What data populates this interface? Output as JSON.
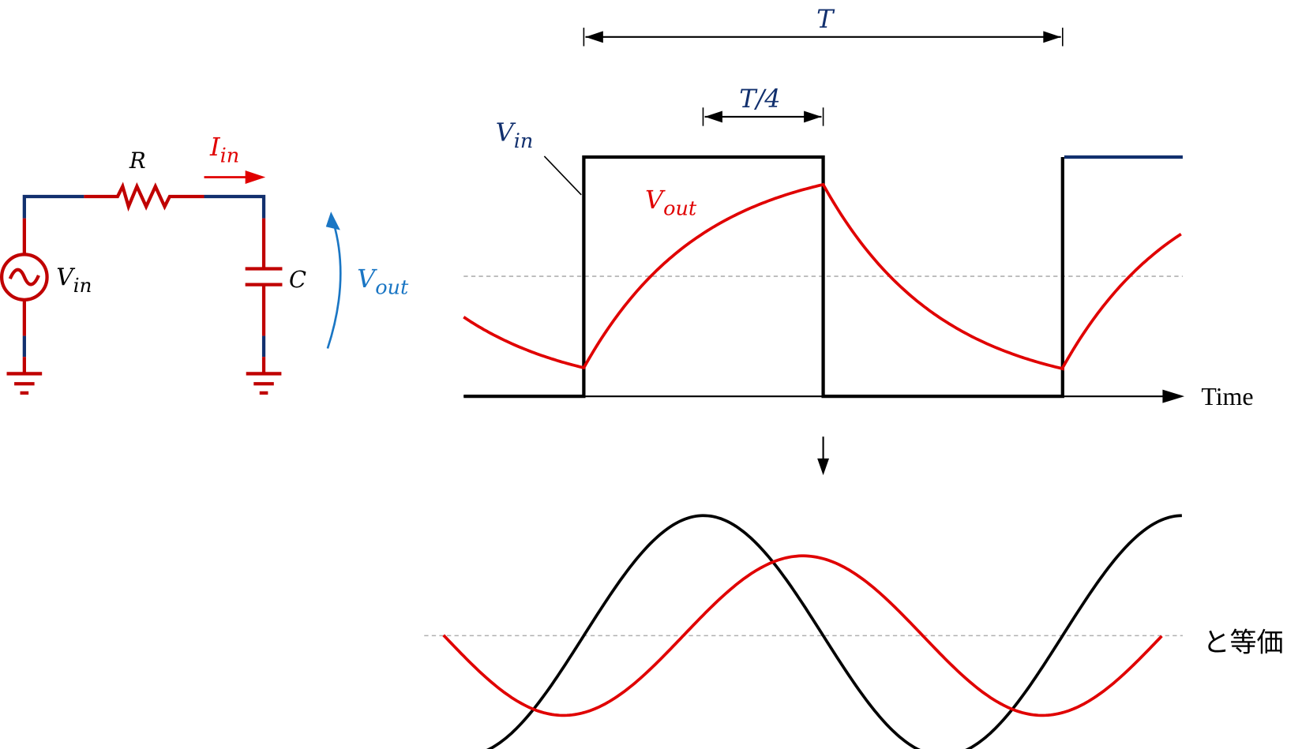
{
  "circuit": {
    "resistor_label": "R",
    "current_label": {
      "main": "I",
      "sub": "in"
    },
    "source_label": {
      "main": "V",
      "sub": "in"
    },
    "capacitor_label": "C",
    "output_label": {
      "main": "V",
      "sub": "out"
    }
  },
  "waveform": {
    "period_label": "T",
    "quarter_label": "T/4",
    "vin_label": {
      "main": "V",
      "sub": "in"
    },
    "vout_label": {
      "main": "V",
      "sub": "out"
    },
    "time_axis_label": "Time"
  },
  "equivalent": {
    "label": "と等価"
  },
  "colors": {
    "wire_navy": "#12306e",
    "red": "#e00000",
    "dark_red": "#c00000",
    "blue": "#1a76c4",
    "black": "#000000",
    "dashed": "#b0b0b0"
  }
}
